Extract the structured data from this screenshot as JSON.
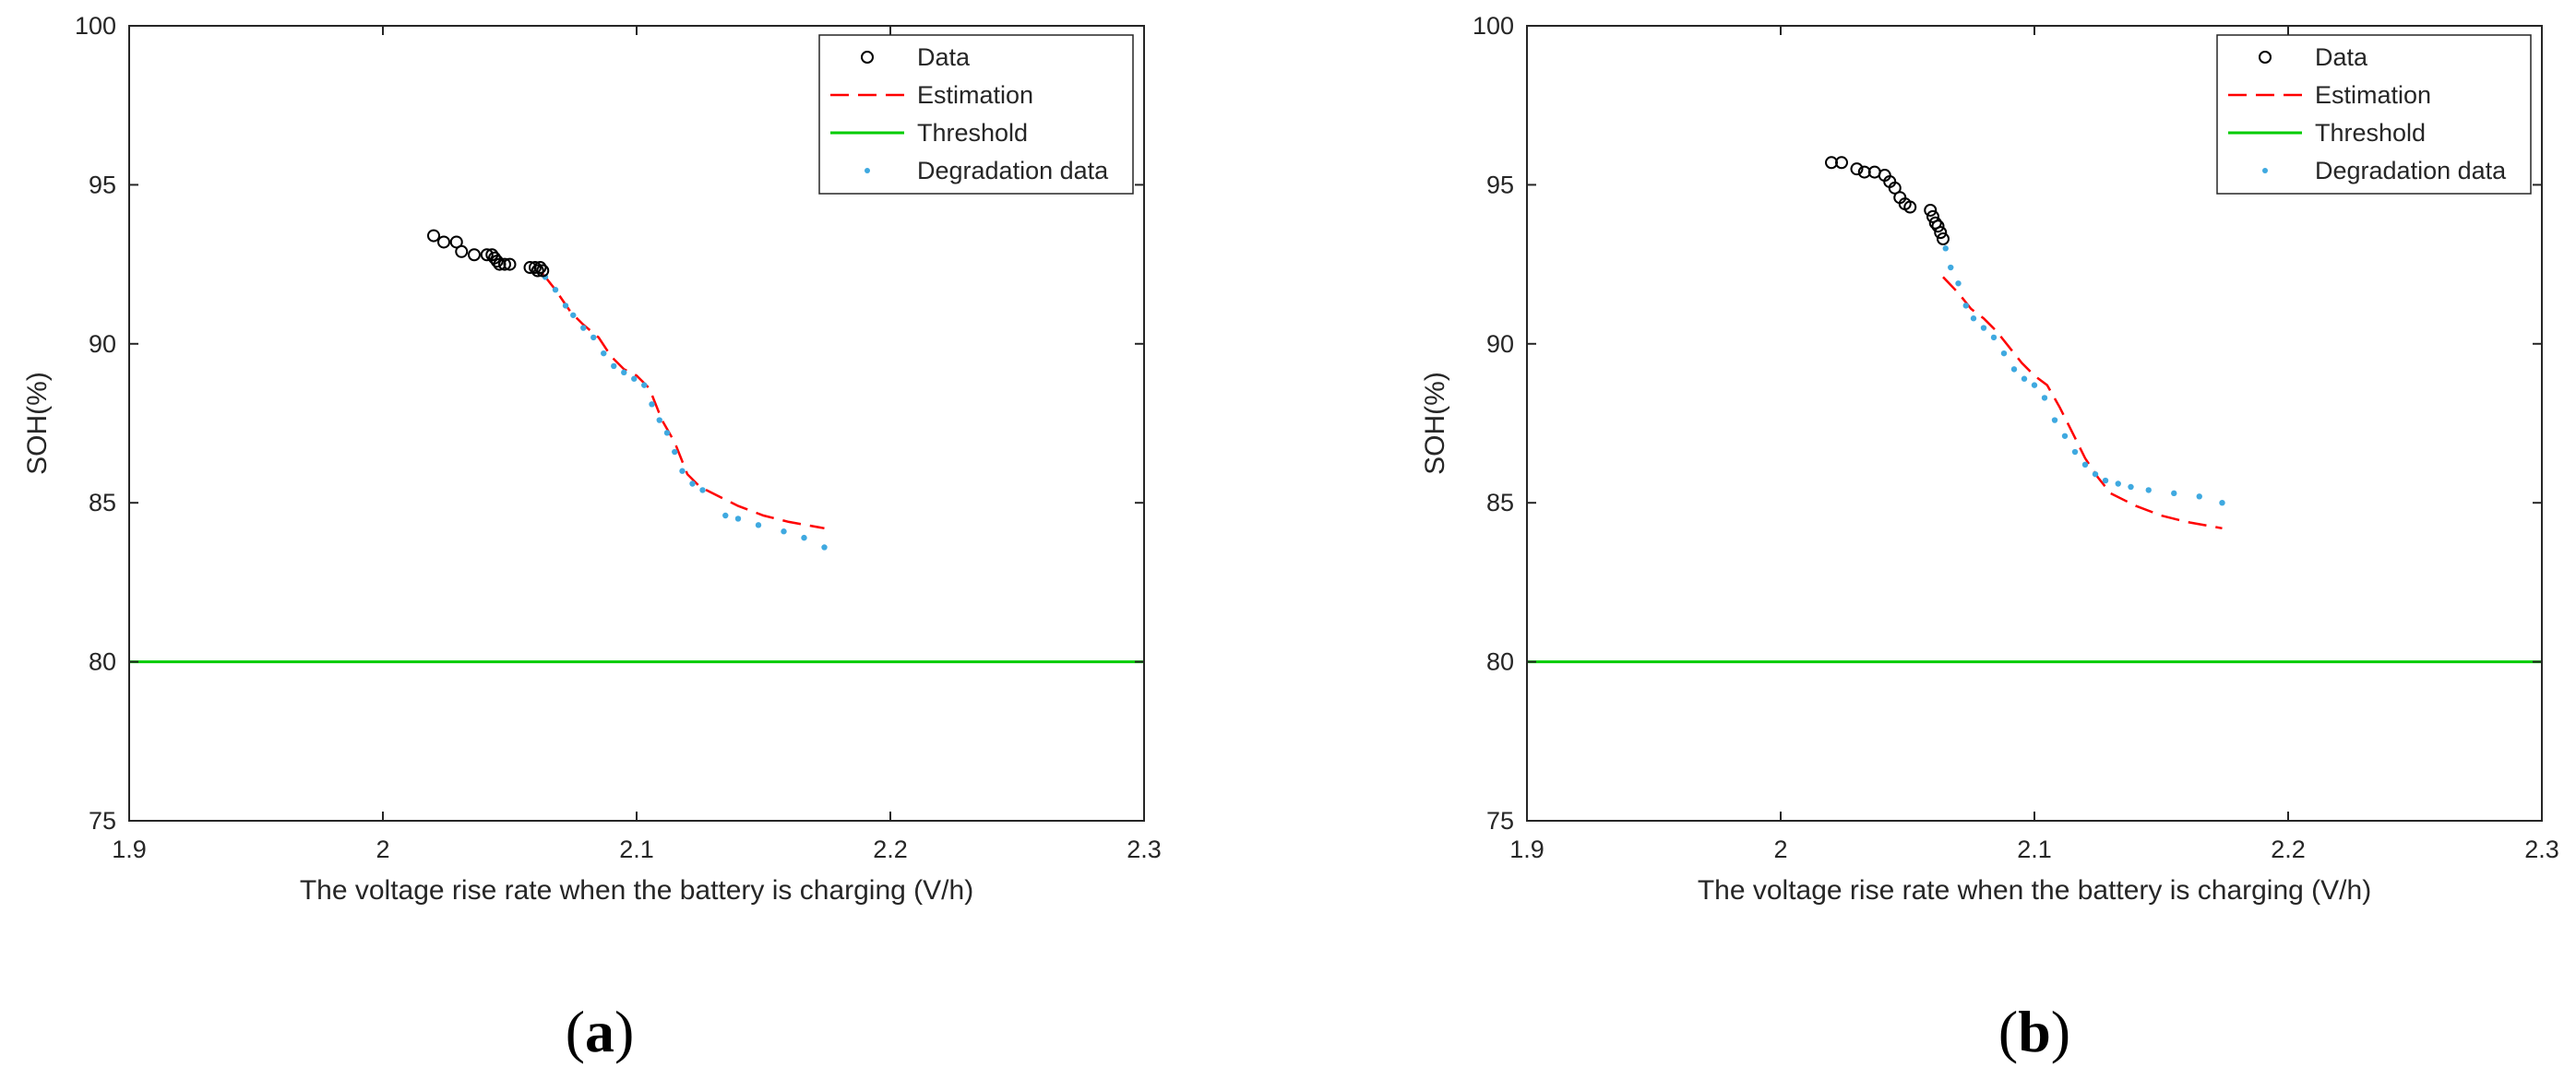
{
  "colors": {
    "data": "#000000",
    "estimation": "#ff0000",
    "threshold": "#00cc00",
    "degradation": "#3fa9e0",
    "axis": "#262626"
  },
  "chart_data": [
    {
      "panel_label": "a",
      "type": "scatter",
      "xlabel": "The voltage rise rate when the battery is charging (V/h)",
      "ylabel": "SOH(%)",
      "xlim": [
        1.9,
        2.3
      ],
      "ylim": [
        75,
        100
      ],
      "xticks": [
        1.9,
        2,
        2.1,
        2.2,
        2.3
      ],
      "xtick_labels": [
        "1.9",
        "2",
        "2.1",
        "2.2",
        "2.3"
      ],
      "yticks": [
        75,
        80,
        85,
        90,
        95,
        100
      ],
      "ytick_labels": [
        "75",
        "80",
        "85",
        "90",
        "95",
        "100"
      ],
      "legend": [
        "Data",
        "Estimation",
        "Threshold",
        "Degradation data"
      ],
      "legend_position": "top-right",
      "series": {
        "data": {
          "name": "Data",
          "style": "circle",
          "x": [
            2.02,
            2.024,
            2.029,
            2.031,
            2.036,
            2.041,
            2.043,
            2.044,
            2.045,
            2.046,
            2.048,
            2.05,
            2.058,
            2.06,
            2.061,
            2.062,
            2.063
          ],
          "y": [
            93.4,
            93.2,
            93.2,
            92.9,
            92.8,
            92.8,
            92.8,
            92.7,
            92.6,
            92.5,
            92.5,
            92.5,
            92.4,
            92.4,
            92.3,
            92.4,
            92.3
          ]
        },
        "estimation": {
          "name": "Estimation",
          "style": "dashed",
          "x": [
            2.063,
            2.068,
            2.074,
            2.079,
            2.085,
            2.09,
            2.095,
            2.1,
            2.105,
            2.11,
            2.115,
            2.12,
            2.125,
            2.13,
            2.14,
            2.15,
            2.16,
            2.174
          ],
          "y": [
            92.2,
            91.7,
            91.0,
            90.6,
            90.2,
            89.6,
            89.2,
            89.0,
            88.6,
            87.6,
            86.9,
            85.9,
            85.5,
            85.3,
            84.9,
            84.6,
            84.4,
            84.2
          ]
        },
        "threshold": {
          "name": "Threshold",
          "style": "solid",
          "x": [
            1.9,
            2.3
          ],
          "y": [
            80,
            80
          ]
        },
        "degradation": {
          "name": "Degradation data",
          "style": "dot",
          "x": [
            2.064,
            2.068,
            2.072,
            2.075,
            2.079,
            2.083,
            2.087,
            2.091,
            2.095,
            2.099,
            2.103,
            2.106,
            2.109,
            2.112,
            2.115,
            2.118,
            2.122,
            2.126,
            2.135,
            2.14,
            2.148,
            2.158,
            2.166,
            2.174
          ],
          "y": [
            92.1,
            91.7,
            91.2,
            90.9,
            90.5,
            90.2,
            89.7,
            89.3,
            89.1,
            88.9,
            88.7,
            88.1,
            87.6,
            87.2,
            86.6,
            86.0,
            85.6,
            85.4,
            84.6,
            84.5,
            84.3,
            84.1,
            83.9,
            83.6
          ]
        }
      }
    },
    {
      "panel_label": "b",
      "type": "scatter",
      "xlabel": "The voltage rise rate when the battery is charging (V/h)",
      "ylabel": "SOH(%)",
      "xlim": [
        1.9,
        2.3
      ],
      "ylim": [
        75,
        100
      ],
      "xticks": [
        1.9,
        2,
        2.1,
        2.2,
        2.3
      ],
      "xtick_labels": [
        "1.9",
        "2",
        "2.1",
        "2.2",
        "2.3"
      ],
      "yticks": [
        75,
        80,
        85,
        90,
        95,
        100
      ],
      "ytick_labels": [
        "75",
        "80",
        "85",
        "90",
        "95",
        "100"
      ],
      "legend": [
        "Data",
        "Estimation",
        "Threshold",
        "Degradation data"
      ],
      "legend_position": "top-right",
      "series": {
        "data": {
          "name": "Data",
          "style": "circle",
          "x": [
            2.02,
            2.024,
            2.03,
            2.033,
            2.037,
            2.041,
            2.043,
            2.045,
            2.047,
            2.049,
            2.051,
            2.059,
            2.06,
            2.061,
            2.062,
            2.063,
            2.064
          ],
          "y": [
            95.7,
            95.7,
            95.5,
            95.4,
            95.4,
            95.3,
            95.1,
            94.9,
            94.6,
            94.4,
            94.3,
            94.2,
            94.0,
            93.8,
            93.7,
            93.5,
            93.3
          ]
        },
        "estimation": {
          "name": "Estimation",
          "style": "dashed",
          "x": [
            2.064,
            2.07,
            2.075,
            2.08,
            2.085,
            2.09,
            2.095,
            2.1,
            2.105,
            2.11,
            2.115,
            2.12,
            2.125,
            2.13,
            2.14,
            2.15,
            2.16,
            2.174
          ],
          "y": [
            92.1,
            91.6,
            91.1,
            90.8,
            90.4,
            89.9,
            89.4,
            89.0,
            88.7,
            88.0,
            87.2,
            86.4,
            85.8,
            85.3,
            84.9,
            84.6,
            84.4,
            84.2
          ]
        },
        "threshold": {
          "name": "Threshold",
          "style": "solid",
          "x": [
            1.9,
            2.3
          ],
          "y": [
            80,
            80
          ]
        },
        "degradation": {
          "name": "Degradation data",
          "style": "dot",
          "x": [
            2.065,
            2.067,
            2.07,
            2.073,
            2.076,
            2.08,
            2.084,
            2.088,
            2.092,
            2.096,
            2.1,
            2.104,
            2.108,
            2.112,
            2.116,
            2.12,
            2.124,
            2.128,
            2.133,
            2.138,
            2.145,
            2.155,
            2.165,
            2.174
          ],
          "y": [
            93.0,
            92.4,
            91.9,
            91.2,
            90.8,
            90.5,
            90.2,
            89.7,
            89.2,
            88.9,
            88.7,
            88.3,
            87.6,
            87.1,
            86.6,
            86.2,
            85.9,
            85.7,
            85.6,
            85.5,
            85.4,
            85.3,
            85.2,
            85.0
          ]
        }
      }
    }
  ]
}
